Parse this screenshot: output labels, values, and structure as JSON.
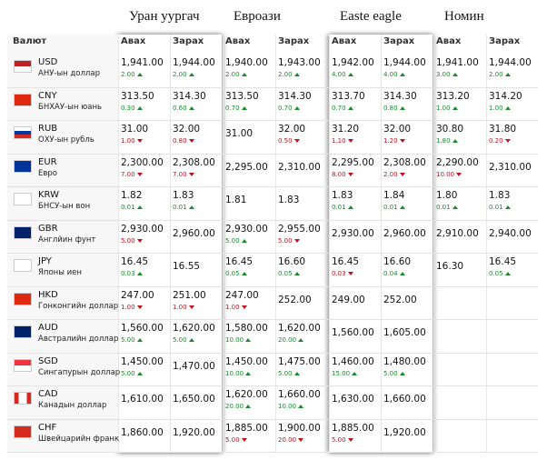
{
  "groups": [
    "Уран уургач",
    "Евроази",
    "Easte eagle",
    "Номин"
  ],
  "currency_header": "Валют",
  "buy_header": "Авах",
  "sell_header": "Зарах",
  "rows": [
    {
      "code": "USD",
      "name": "АНУ-ын доллар",
      "cells": [
        {
          "value": "1,941.00",
          "change": "2.00",
          "dir": "up"
        },
        {
          "value": "1,944.00",
          "change": "2.00",
          "dir": "up"
        },
        {
          "value": "1,940.00",
          "change": "2.00",
          "dir": "up"
        },
        {
          "value": "1,943.00",
          "change": "2.00",
          "dir": "up"
        },
        {
          "value": "1,942.00",
          "change": "4.00",
          "dir": "up"
        },
        {
          "value": "1,944.00",
          "change": "4.00",
          "dir": "up"
        },
        {
          "value": "1,941.00",
          "change": "3.00",
          "dir": "up"
        },
        {
          "value": "1,944.00",
          "change": "2.00",
          "dir": "up"
        }
      ]
    },
    {
      "code": "CNY",
      "name": "БНХАУ-ын юань",
      "cells": [
        {
          "value": "313.50",
          "change": "0.30",
          "dir": "up"
        },
        {
          "value": "314.30",
          "change": "0.60",
          "dir": "up"
        },
        {
          "value": "313.50",
          "change": "0.70",
          "dir": "up"
        },
        {
          "value": "314.30",
          "change": "0.70",
          "dir": "up"
        },
        {
          "value": "313.70",
          "change": "0.70",
          "dir": "up"
        },
        {
          "value": "314.30",
          "change": "0.80",
          "dir": "up"
        },
        {
          "value": "313.20",
          "change": "1.00",
          "dir": "up"
        },
        {
          "value": "314.20",
          "change": "1.00",
          "dir": "up"
        }
      ]
    },
    {
      "code": "RUB",
      "name": "ОХУ-ын рубль",
      "cells": [
        {
          "value": "31.00",
          "change": "1.00",
          "dir": "down"
        },
        {
          "value": "32.00",
          "change": "0.80",
          "dir": "down"
        },
        {
          "value": "31.00"
        },
        {
          "value": "32.00",
          "change": "0.50",
          "dir": "down"
        },
        {
          "value": "31.20",
          "change": "1.10",
          "dir": "down"
        },
        {
          "value": "32.00",
          "change": "1.20",
          "dir": "down"
        },
        {
          "value": "30.80",
          "change": "1.80",
          "dir": "up"
        },
        {
          "value": "31.80",
          "change": "0.20",
          "dir": "down"
        }
      ]
    },
    {
      "code": "EUR",
      "name": "Евро",
      "cells": [
        {
          "value": "2,300.00",
          "change": "7.00",
          "dir": "down"
        },
        {
          "value": "2,308.00",
          "change": "7.00",
          "dir": "down"
        },
        {
          "value": "2,295.00"
        },
        {
          "value": "2,310.00"
        },
        {
          "value": "2,295.00",
          "change": "8.00",
          "dir": "down"
        },
        {
          "value": "2,308.00",
          "change": "2.00",
          "dir": "down"
        },
        {
          "value": "2,290.00",
          "change": "10.00",
          "dir": "down"
        },
        {
          "value": "2,310.00"
        }
      ]
    },
    {
      "code": "KRW",
      "name": "БНСУ-ын вон",
      "cells": [
        {
          "value": "1.82",
          "change": "0.01",
          "dir": "up"
        },
        {
          "value": "1.83",
          "change": "0.01",
          "dir": "up"
        },
        {
          "value": "1.81"
        },
        {
          "value": "1.83"
        },
        {
          "value": "1.83",
          "change": "0.01",
          "dir": "up"
        },
        {
          "value": "1.84",
          "change": "0.01",
          "dir": "up"
        },
        {
          "value": "1.80",
          "change": "0.01",
          "dir": "up"
        },
        {
          "value": "1.83",
          "change": "0.01",
          "dir": "up"
        }
      ]
    },
    {
      "code": "GBR",
      "name": "Англйин фунт",
      "cells": [
        {
          "value": "2,930.00",
          "change": "5.00",
          "dir": "down"
        },
        {
          "value": "2,960.00"
        },
        {
          "value": "2,930.00",
          "change": "5.00",
          "dir": "up"
        },
        {
          "value": "2,955.00",
          "change": "5.00",
          "dir": "down"
        },
        {
          "value": "2,930.00"
        },
        {
          "value": "2,960.00"
        },
        {
          "value": "2,910.00"
        },
        {
          "value": "2,940.00"
        }
      ]
    },
    {
      "code": "JPY",
      "name": "Японы иен",
      "cells": [
        {
          "value": "16.45",
          "change": "0.03",
          "dir": "up"
        },
        {
          "value": "16.55"
        },
        {
          "value": "16.45",
          "change": "0.05",
          "dir": "up"
        },
        {
          "value": "16.60",
          "change": "0.05",
          "dir": "up"
        },
        {
          "value": "16.45",
          "change": "0.03",
          "dir": "down"
        },
        {
          "value": "16.60",
          "change": "0.04",
          "dir": "up"
        },
        {
          "value": "16.30"
        },
        {
          "value": "16.45",
          "change": "0.05",
          "dir": "up"
        }
      ]
    },
    {
      "code": "HKD",
      "name": "Гонконгийн доллар",
      "cells": [
        {
          "value": "247.00",
          "change": "1.00",
          "dir": "down"
        },
        {
          "value": "251.00",
          "change": "1.00",
          "dir": "down"
        },
        {
          "value": "247.00",
          "change": "1.00",
          "dir": "down"
        },
        {
          "value": "252.00"
        },
        {
          "value": "249.00"
        },
        {
          "value": "252.00"
        }
      ]
    },
    {
      "code": "AUD",
      "name": "Австралийн доллар",
      "cells": [
        {
          "value": "1,560.00",
          "change": "5.00",
          "dir": "up"
        },
        {
          "value": "1,620.00",
          "change": "5.00",
          "dir": "up"
        },
        {
          "value": "1,580.00",
          "change": "10.00",
          "dir": "up"
        },
        {
          "value": "1,620.00",
          "change": "20.00",
          "dir": "up"
        },
        {
          "value": "1,560.00"
        },
        {
          "value": "1,605.00"
        }
      ]
    },
    {
      "code": "SGD",
      "name": "Сингапурын доллар",
      "cells": [
        {
          "value": "1,450.00",
          "change": "5.00",
          "dir": "up"
        },
        {
          "value": "1,470.00"
        },
        {
          "value": "1,450.00",
          "change": "10.00",
          "dir": "up"
        },
        {
          "value": "1,475.00",
          "change": "5.00",
          "dir": "up"
        },
        {
          "value": "1,460.00",
          "change": "15.00",
          "dir": "up"
        },
        {
          "value": "1,480.00",
          "change": "5.00",
          "dir": "up"
        }
      ]
    },
    {
      "code": "CAD",
      "name": "Канадын доллар",
      "cells": [
        {
          "value": "1,610.00"
        },
        {
          "value": "1,650.00"
        },
        {
          "value": "1,620.00",
          "change": "20.00",
          "dir": "up"
        },
        {
          "value": "1,660.00",
          "change": "10.00",
          "dir": "up"
        },
        {
          "value": "1,630.00"
        },
        {
          "value": "1,660.00"
        }
      ]
    },
    {
      "code": "CHF",
      "name": "Швейцарийн франк",
      "cells": [
        {
          "value": "1,860.00"
        },
        {
          "value": "1,920.00"
        },
        {
          "value": "1,885.00",
          "change": "5.00",
          "dir": "down"
        },
        {
          "value": "1,900.00",
          "change": "20.00",
          "dir": "down"
        },
        {
          "value": "1,885.00",
          "change": "5.00",
          "dir": "down"
        },
        {
          "value": "1,920.00"
        }
      ]
    }
  ]
}
